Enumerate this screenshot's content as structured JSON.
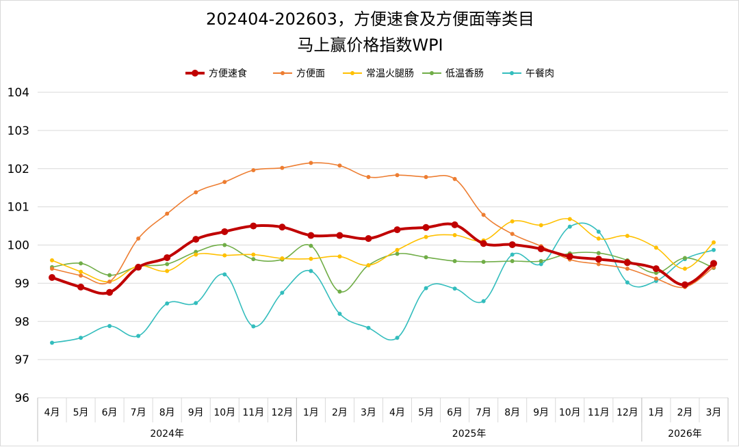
{
  "chart_data": {
    "type": "line",
    "title_line1": "202404-202603，方便速食及方便面等类目",
    "title_line2": "马上赢价格指数WPI",
    "ylim": [
      96,
      104
    ],
    "yticks": [
      96,
      97,
      98,
      99,
      100,
      101,
      102,
      103,
      104
    ],
    "categories": [
      "4月",
      "5月",
      "6月",
      "7月",
      "8月",
      "9月",
      "10月",
      "11月",
      "12月",
      "1月",
      "2月",
      "3月",
      "4月",
      "5月",
      "6月",
      "7月",
      "8月",
      "9月",
      "10月",
      "11月",
      "12月",
      "1月",
      "2月",
      "3月"
    ],
    "year_groups": [
      {
        "label": "2024年",
        "start": 0,
        "end": 8
      },
      {
        "label": "2025年",
        "start": 9,
        "end": 20
      },
      {
        "label": "2026年",
        "start": 21,
        "end": 23
      }
    ],
    "grid": true,
    "legend_position": "top",
    "series": [
      {
        "name": "方便速食",
        "color": "#c00000",
        "width": 4,
        "marker": 5,
        "values": [
          99.15,
          98.9,
          98.76,
          99.42,
          99.67,
          100.15,
          100.35,
          100.5,
          100.47,
          100.25,
          100.25,
          100.17,
          100.4,
          100.46,
          100.53,
          100.04,
          100.01,
          99.9,
          99.7,
          99.63,
          99.54,
          99.38,
          98.96,
          99.52
        ]
      },
      {
        "name": "方便面",
        "color": "#ed7d31",
        "width": 1.6,
        "marker": 3,
        "values": [
          99.38,
          99.2,
          99.04,
          100.17,
          100.82,
          101.38,
          101.65,
          101.96,
          102.02,
          102.15,
          102.08,
          101.78,
          101.83,
          101.78,
          101.73,
          100.79,
          100.29,
          99.97,
          99.62,
          99.5,
          99.38,
          99.12,
          98.9,
          99.42
        ]
      },
      {
        "name": "常温火腿肠",
        "color": "#ffc000",
        "width": 1.6,
        "marker": 3,
        "values": [
          99.6,
          99.3,
          99.04,
          99.45,
          99.32,
          99.75,
          99.73,
          99.75,
          99.65,
          99.64,
          99.7,
          99.47,
          99.87,
          100.21,
          100.26,
          100.12,
          100.62,
          100.52,
          100.68,
          100.17,
          100.24,
          99.93,
          99.38,
          100.07
        ]
      },
      {
        "name": "低温香肠",
        "color": "#70ad47",
        "width": 1.6,
        "marker": 3,
        "values": [
          99.42,
          99.52,
          99.21,
          99.44,
          99.5,
          99.82,
          100.0,
          99.63,
          99.62,
          99.98,
          98.78,
          99.47,
          99.77,
          99.68,
          99.58,
          99.56,
          99.58,
          99.58,
          99.78,
          99.79,
          99.6,
          99.27,
          99.66,
          99.4
        ]
      },
      {
        "name": "午餐肉",
        "color": "#33bdbd",
        "width": 1.6,
        "marker": 3,
        "values": [
          97.44,
          97.57,
          97.88,
          97.62,
          98.47,
          98.48,
          99.23,
          97.87,
          98.75,
          99.32,
          98.2,
          97.83,
          97.57,
          98.87,
          98.86,
          98.53,
          99.75,
          99.5,
          100.48,
          100.35,
          99.02,
          99.06,
          99.63,
          99.87
        ]
      }
    ]
  }
}
